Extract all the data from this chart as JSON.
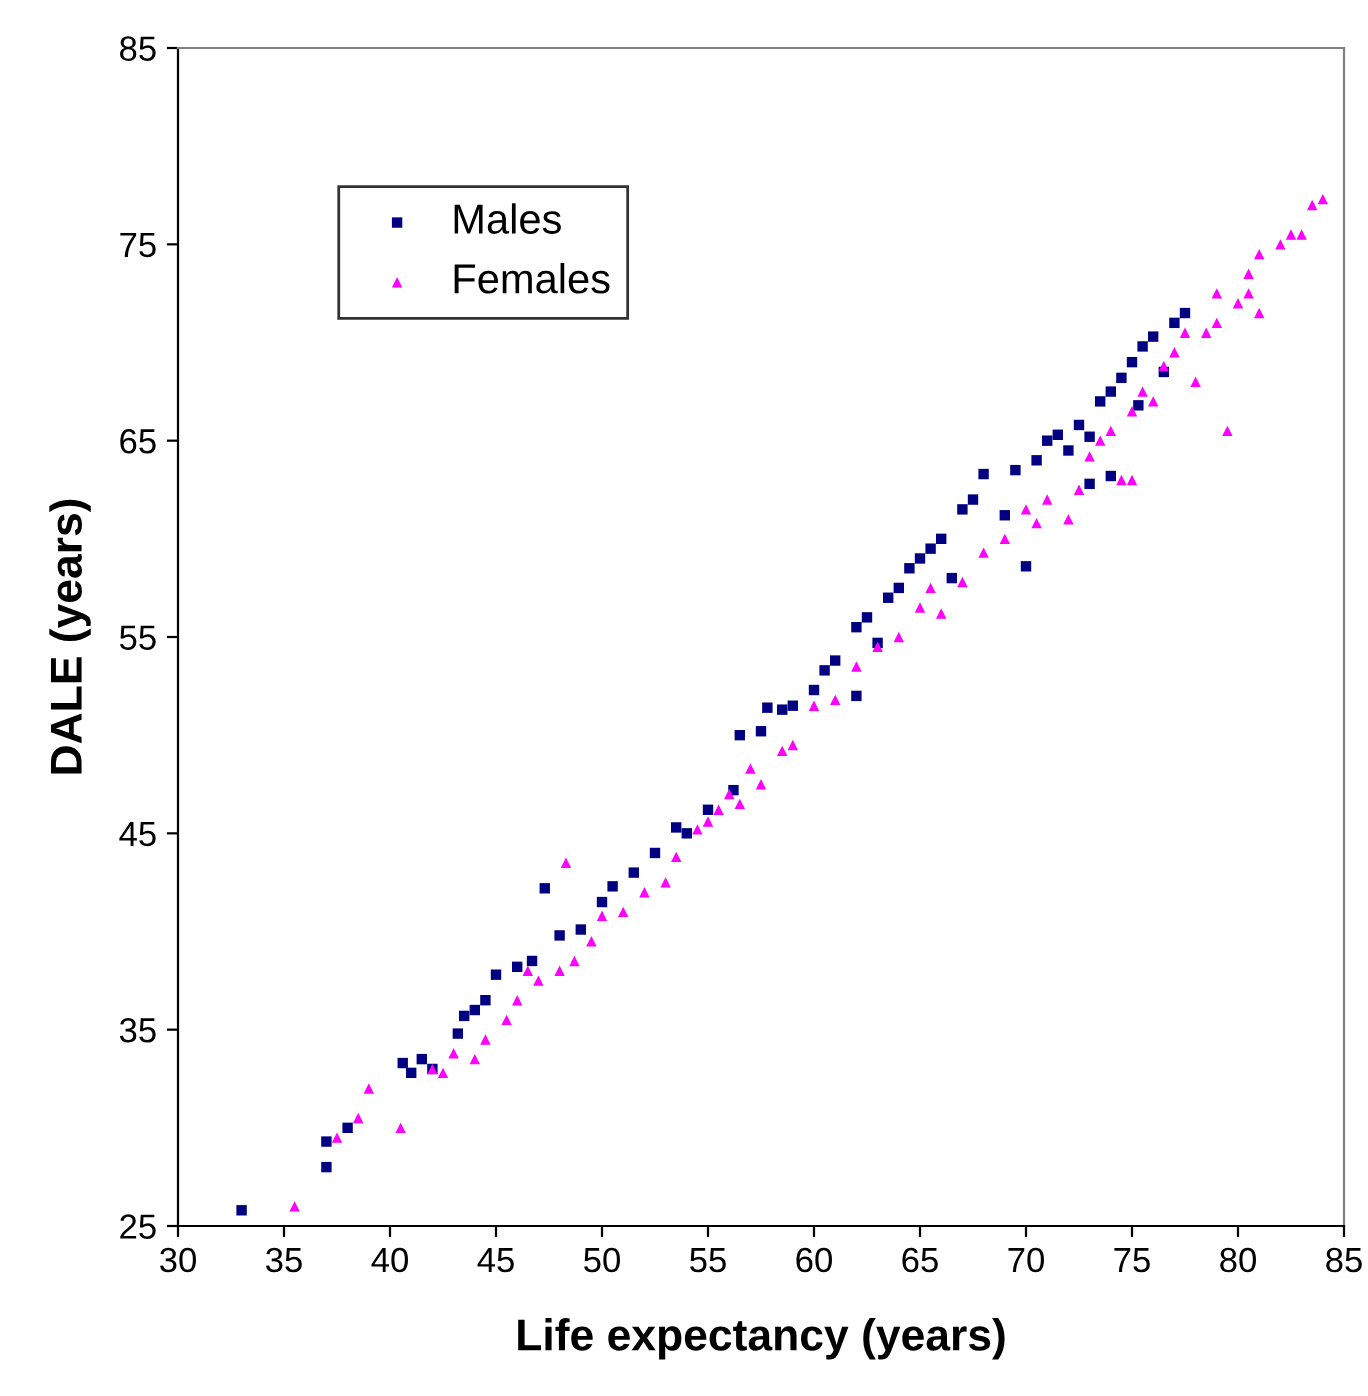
{
  "chart_data": {
    "type": "scatter",
    "xlabel": "Life expectancy (years)",
    "ylabel": "DALE (years)",
    "xlim": [
      30,
      85
    ],
    "xticks": [
      30,
      35,
      40,
      45,
      50,
      55,
      60,
      65,
      70,
      75,
      80,
      85
    ],
    "ylim": [
      25,
      85
    ],
    "yticks": [
      25,
      35,
      45,
      55,
      65,
      75,
      85
    ],
    "grid": false,
    "legend": "top left",
    "series": [
      {
        "name": "Males",
        "color": "#000080",
        "marker": "square",
        "x": [
          33.0,
          37,
          37,
          38,
          40.6,
          41,
          41.5,
          42,
          43.2,
          43.5,
          44,
          44.5,
          45,
          46,
          46.7,
          47.3,
          48,
          49,
          50,
          50.5,
          51.5,
          52.5,
          53.5,
          54,
          55,
          56.2,
          56.5,
          57.5,
          57.8,
          58.5,
          59,
          60,
          60.5,
          61,
          62,
          62,
          62.5,
          63,
          63.5,
          64,
          64.5,
          65,
          65.5,
          66,
          66.5,
          67,
          67.5,
          68,
          69,
          69.5,
          70,
          70.5,
          71,
          71.5,
          72,
          72.5,
          73,
          73,
          73.5,
          74,
          74,
          74.5,
          75,
          75.3,
          75.5,
          76,
          76.5,
          77,
          77.5
        ],
        "values": [
          25.8,
          29.3,
          28,
          30,
          33.3,
          32.8,
          33.5,
          33,
          34.8,
          35.7,
          36,
          36.5,
          37.8,
          38.2,
          38.5,
          42.2,
          39.8,
          40.1,
          41.5,
          42.3,
          43,
          44,
          45.3,
          45,
          46.2,
          47.2,
          50,
          50.2,
          51.4,
          51.3,
          51.5,
          52.3,
          53.3,
          53.8,
          52,
          55.5,
          56,
          54.7,
          57,
          57.5,
          58.5,
          59,
          59.5,
          60,
          58,
          61.5,
          62,
          63.3,
          61.2,
          63.5,
          58.6,
          64,
          65,
          65.3,
          64.5,
          65.8,
          65.2,
          62.8,
          67,
          67.5,
          63.2,
          68.2,
          69,
          66.8,
          69.8,
          70.3,
          68.5,
          71,
          71.5
        ]
      },
      {
        "name": "Females",
        "color": "#ff00ff",
        "marker": "triangle",
        "x": [
          35.5,
          37.5,
          38.5,
          39,
          40.5,
          42,
          42.5,
          43,
          44,
          44.5,
          45.5,
          46,
          46.5,
          47,
          48,
          48.3,
          48.7,
          49.5,
          50,
          51,
          52,
          53,
          53.5,
          54.5,
          55,
          55.5,
          56,
          56.5,
          57,
          57.5,
          58.5,
          59,
          60,
          61,
          62,
          63,
          64,
          65,
          65.5,
          66,
          67,
          68,
          69,
          70,
          70.5,
          71,
          72,
          72.5,
          73,
          73.5,
          74,
          74.5,
          75,
          75,
          75.5,
          76,
          76.5,
          77,
          77.5,
          78,
          78.5,
          79,
          79,
          79.5,
          80,
          80.5,
          80.5,
          81,
          81,
          82,
          82.5,
          83,
          83.5,
          84
        ],
        "values": [
          26,
          29.5,
          30.5,
          32,
          30,
          33,
          32.8,
          33.8,
          33.5,
          34.5,
          35.5,
          36.5,
          38,
          37.5,
          38,
          43.5,
          38.5,
          39.5,
          40.8,
          41,
          42,
          42.5,
          43.8,
          45.2,
          45.6,
          46.2,
          47,
          46.5,
          48.3,
          47.5,
          49.2,
          49.5,
          51.5,
          51.8,
          53.5,
          54.5,
          55,
          56.5,
          57.5,
          56.2,
          57.8,
          59.3,
          60,
          61.5,
          60.8,
          62,
          61,
          62.5,
          64.2,
          65,
          65.5,
          63,
          63,
          66.5,
          67.5,
          67,
          68.8,
          69.5,
          70.5,
          68,
          70.5,
          71,
          72.5,
          65.5,
          72,
          72.5,
          73.5,
          74.5,
          71.5,
          75,
          75.5,
          75.5,
          77,
          77.3
        ]
      }
    ]
  }
}
